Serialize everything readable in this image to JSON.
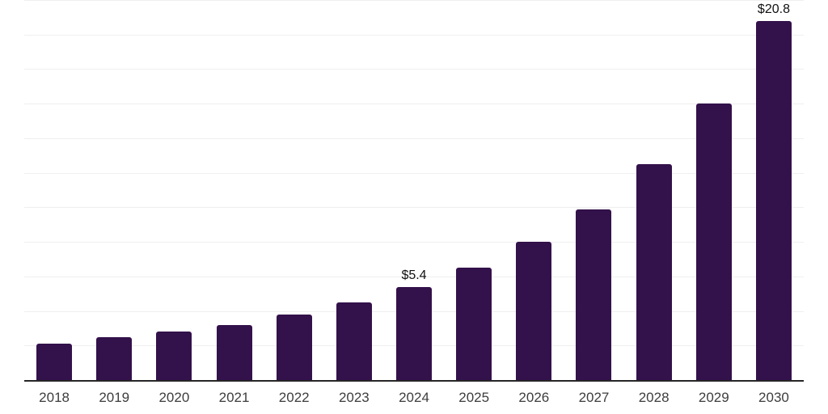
{
  "chart_data": {
    "type": "bar",
    "title": "",
    "xlabel": "",
    "ylabel": "",
    "categories": [
      "2018",
      "2019",
      "2020",
      "2021",
      "2022",
      "2023",
      "2024",
      "2025",
      "2026",
      "2027",
      "2028",
      "2029",
      "2030"
    ],
    "values": [
      2.1,
      2.5,
      2.8,
      3.2,
      3.8,
      4.5,
      5.4,
      6.5,
      8.0,
      9.9,
      12.5,
      16.0,
      20.8
    ],
    "annotations": [
      {
        "category": "2024",
        "text": "$5.4"
      },
      {
        "category": "2030",
        "text": "$20.8"
      }
    ],
    "ylim": [
      0,
      22
    ],
    "grid_step": 2,
    "grid": "horizontal",
    "y_axis_labels_visible": false,
    "legend": "none",
    "colors": {
      "bar": "#33114a",
      "gridline": "#efefef",
      "axis_line": "#262626",
      "x_tick_label": "#3d3d3d",
      "value_label": "#111111",
      "background": "#ffffff"
    }
  }
}
